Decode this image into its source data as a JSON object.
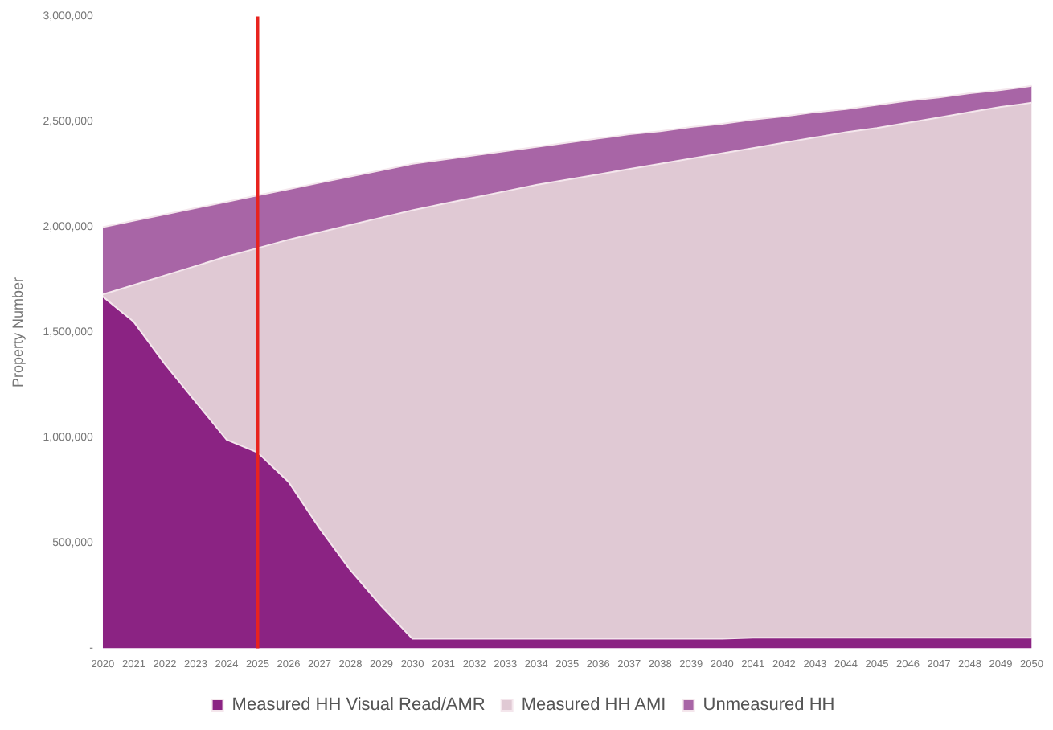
{
  "chart_data": {
    "type": "area",
    "stacked": true,
    "ylabel": "Property Number",
    "categories": [
      "2020",
      "2021",
      "2022",
      "2023",
      "2024",
      "2025",
      "2026",
      "2027",
      "2028",
      "2029",
      "2030",
      "2031",
      "2032",
      "2033",
      "2034",
      "2035",
      "2036",
      "2037",
      "2038",
      "2039",
      "2040",
      "2041",
      "2042",
      "2043",
      "2044",
      "2045",
      "2046",
      "2047",
      "2048",
      "2049",
      "2050"
    ],
    "series": [
      {
        "name": "Measured HH Visual Read/AMR",
        "color": "#8b2383",
        "values": [
          1670000,
          1550000,
          1350000,
          1170000,
          990000,
          930000,
          790000,
          570000,
          370000,
          200000,
          45000,
          45000,
          45000,
          45000,
          45000,
          45000,
          45000,
          45000,
          45000,
          45000,
          45000,
          50000,
          50000,
          50000,
          50000,
          50000,
          50000,
          50000,
          50000,
          50000,
          50000
        ]
      },
      {
        "name": "Measured HH AMI",
        "color": "#e0c9d4",
        "values": [
          10000,
          175000,
          420000,
          645000,
          870000,
          970000,
          1150000,
          1405000,
          1640000,
          1845000,
          2035000,
          2065000,
          2095000,
          2125000,
          2155000,
          2180000,
          2205000,
          2230000,
          2255000,
          2280000,
          2305000,
          2325000,
          2350000,
          2375000,
          2400000,
          2420000,
          2445000,
          2470000,
          2495000,
          2520000,
          2540000
        ]
      },
      {
        "name": "Unmeasured HH",
        "color": "#a865a6",
        "values": [
          320000,
          305000,
          290000,
          275000,
          260000,
          250000,
          240000,
          235000,
          230000,
          225000,
          220000,
          210000,
          200000,
          190000,
          180000,
          175000,
          170000,
          165000,
          155000,
          150000,
          140000,
          135000,
          125000,
          120000,
          110000,
          110000,
          105000,
          95000,
          90000,
          80000,
          80000
        ]
      }
    ],
    "ylim": [
      0,
      3000000
    ],
    "yticks": [
      {
        "value": 0,
        "label": "-"
      },
      {
        "value": 500000,
        "label": "500,000"
      },
      {
        "value": 1000000,
        "label": "1,000,000"
      },
      {
        "value": 1500000,
        "label": "1,500,000"
      },
      {
        "value": 2000000,
        "label": "2,000,000"
      },
      {
        "value": 2500000,
        "label": "2,500,000"
      },
      {
        "value": 3000000,
        "label": "3,000,000"
      }
    ],
    "ref_lines": [
      {
        "axis": "x",
        "value": "2025",
        "color": "#e8231e"
      }
    ],
    "grid": false,
    "legend": "bottom"
  }
}
